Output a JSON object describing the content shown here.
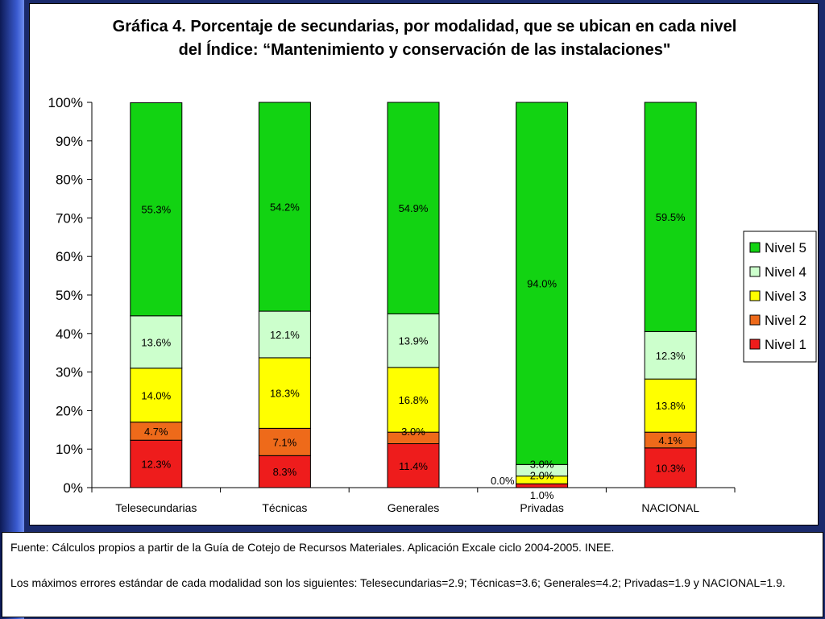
{
  "chart_data": {
    "type": "bar",
    "stacked": true,
    "title_lines": [
      "Gráfica 4. Porcentaje de secundarias, por modalidad, que se ubican en cada nivel",
      "del Índice: “Mantenimiento y conservación de las instalaciones\""
    ],
    "categories": [
      "Telesecundarias",
      "Técnicas",
      "Generales",
      "Privadas",
      "NACIONAL"
    ],
    "yticks": [
      "0%",
      "10%",
      "20%",
      "30%",
      "40%",
      "50%",
      "60%",
      "70%",
      "80%",
      "90%",
      "100%"
    ],
    "ylim": [
      0,
      100
    ],
    "series": [
      {
        "name": "Nivel 1",
        "color": "#ee1c1c",
        "values": [
          12.3,
          8.3,
          11.4,
          1.0,
          10.3
        ],
        "labels": [
          "12.3%",
          "8.3%",
          "11.4%",
          "1.0%",
          "10.3%"
        ]
      },
      {
        "name": "Nivel 2",
        "color": "#ee6a1a",
        "values": [
          4.7,
          7.1,
          3.0,
          0.0,
          4.1
        ],
        "labels": [
          "4.7%",
          "7.1%",
          "3.0%",
          "0.0%",
          "4.1%"
        ]
      },
      {
        "name": "Nivel 3",
        "color": "#ffff00",
        "values": [
          14.0,
          18.3,
          16.8,
          2.0,
          13.8
        ],
        "labels": [
          "14.0%",
          "18.3%",
          "16.8%",
          "2.0%",
          "13.8%"
        ]
      },
      {
        "name": "Nivel 4",
        "color": "#ccffcc",
        "values": [
          13.6,
          12.1,
          13.9,
          3.0,
          12.3
        ],
        "labels": [
          "13.6%",
          "12.1%",
          "13.9%",
          "3.0%",
          "12.3%"
        ]
      },
      {
        "name": "Nivel 5",
        "color": "#12d312",
        "values": [
          55.3,
          54.2,
          54.9,
          94.0,
          59.5
        ],
        "labels": [
          "55.3%",
          "54.2%",
          "54.9%",
          "94.0%",
          "59.5%"
        ]
      }
    ],
    "legend_position": "right",
    "grid": false
  },
  "notes": {
    "source": "Fuente: Cálculos propios a partir de la Guía de Cotejo de Recursos Materiales. Aplicación Excale ciclo 2004-2005. INEE.",
    "errors": "Los máximos errores estándar de cada modalidad son los siguientes: Telesecundarias=2.9; Técnicas=3.6; Generales=4.2; Privadas=1.9 y NACIONAL=1.9."
  }
}
